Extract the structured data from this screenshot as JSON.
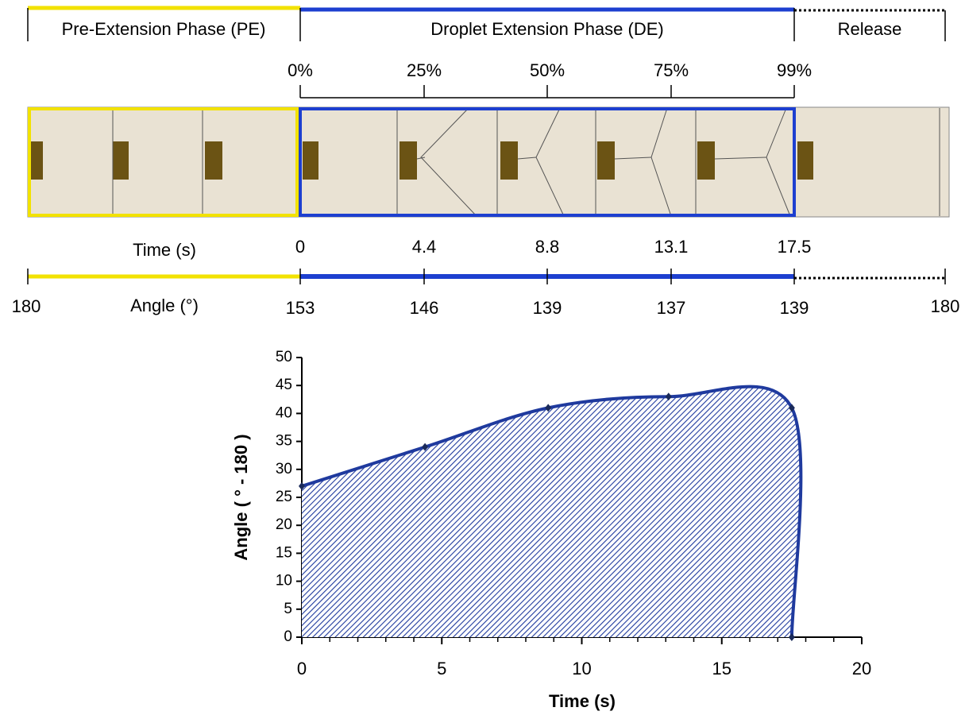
{
  "phases": [
    "Pre-Extension Phase (PE)",
    "Droplet Extension Phase (DE)",
    "Release"
  ],
  "progress_ticks": [
    "0%",
    "25%",
    "50%",
    "75%",
    "99%"
  ],
  "time_label": "Time (s)",
  "times": [
    0,
    4.4,
    8.8,
    13.1,
    17.5
  ],
  "angle_label": "Angle (°)",
  "angles": [
    180,
    153,
    146,
    139,
    137,
    139,
    180
  ],
  "chart_data": {
    "type": "line",
    "x": [
      0,
      4.4,
      8.8,
      13.1,
      17.5,
      17.5
    ],
    "values": [
      27,
      34,
      41,
      43,
      41,
      0
    ],
    "color": "#1f3a9e",
    "xlim": [
      0,
      20
    ],
    "xticks": [
      0,
      5,
      10,
      15,
      20
    ],
    "ylim": [
      0,
      50
    ],
    "yticks": [
      0,
      5,
      10,
      15,
      20,
      25,
      30,
      35,
      40,
      45,
      50
    ],
    "xlabel": "Time (s)",
    "ylabel": "Angle ( ° - 180 )"
  }
}
